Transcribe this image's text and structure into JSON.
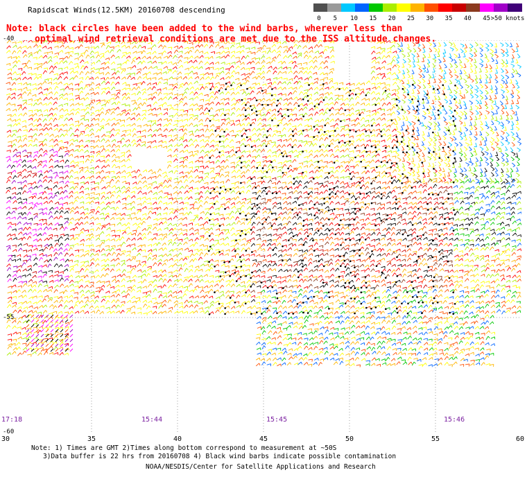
{
  "title": "Rapidscat Winds(12.5KM) 20160708 descending",
  "note_line1": "Note: black circles have been added to the wind barbs, wherever less than",
  "note_line2": "optimal wind retrieval conditions are met due to the ISS altitude changes.",
  "legend": {
    "labels": [
      "0",
      "5",
      "10",
      "15",
      "20",
      "25",
      "30",
      "35",
      "40",
      "45",
      ">50 knots"
    ],
    "colors": [
      "#505050",
      "#9a9a9a",
      "#00c8ff",
      "#0064ff",
      "#00c800",
      "#aaee00",
      "#ffff00",
      "#ffb400",
      "#ff5000",
      "#ff0000",
      "#c80000",
      "#8b3a1e",
      "#ff00ff",
      "#a000c8",
      "#400078"
    ]
  },
  "axes": {
    "x_ticks": [
      "30",
      "35",
      "40",
      "45",
      "50",
      "55",
      "60"
    ],
    "y_ticks": [
      "-40",
      "-55",
      "-60"
    ]
  },
  "times": [
    "17:18",
    "15:44",
    "15:45",
    "15:46"
  ],
  "footer": {
    "line1": "Note: 1) Times are GMT 2)Times along bottom correspond to measurement at ~50S",
    "line2": "3)Data buffer is 22 hrs from 20160708 4) Black wind barbs indicate possible contamination",
    "line3": "NOAA/NESDIS/Center for Satellite Applications and Research"
  }
}
